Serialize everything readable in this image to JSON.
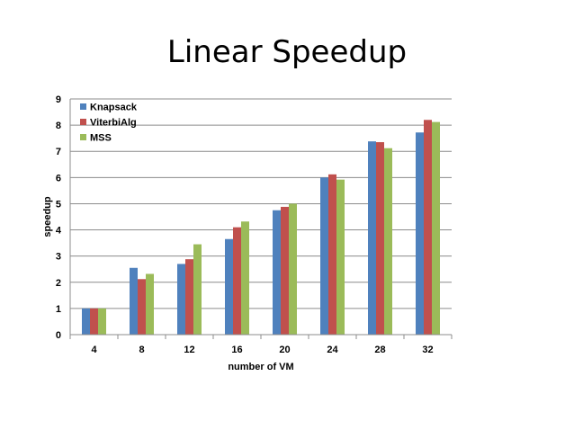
{
  "chart_data": {
    "type": "bar",
    "title": "Linear Speedup",
    "xlabel": "number of VM",
    "ylabel": "speedup",
    "categories": [
      "4",
      "8",
      "12",
      "16",
      "20",
      "24",
      "28",
      "32"
    ],
    "ylim": [
      0,
      9
    ],
    "yticks": [
      "0",
      "1",
      "2",
      "3",
      "4",
      "5",
      "6",
      "7",
      "8",
      "9"
    ],
    "grid": true,
    "legend_position": "top-left",
    "series": [
      {
        "name": "Knapsack",
        "color": "#4F81BD",
        "values": [
          1.0,
          2.55,
          2.7,
          3.65,
          4.75,
          6.0,
          7.38,
          7.72
        ]
      },
      {
        "name": "ViterbiAlg",
        "color": "#C0504D",
        "values": [
          1.0,
          2.12,
          2.88,
          4.1,
          4.88,
          6.12,
          7.35,
          8.2
        ]
      },
      {
        "name": "MSS",
        "color": "#9BBB59",
        "values": [
          1.0,
          2.32,
          3.45,
          4.32,
          5.0,
          5.92,
          7.12,
          8.12
        ]
      }
    ]
  }
}
